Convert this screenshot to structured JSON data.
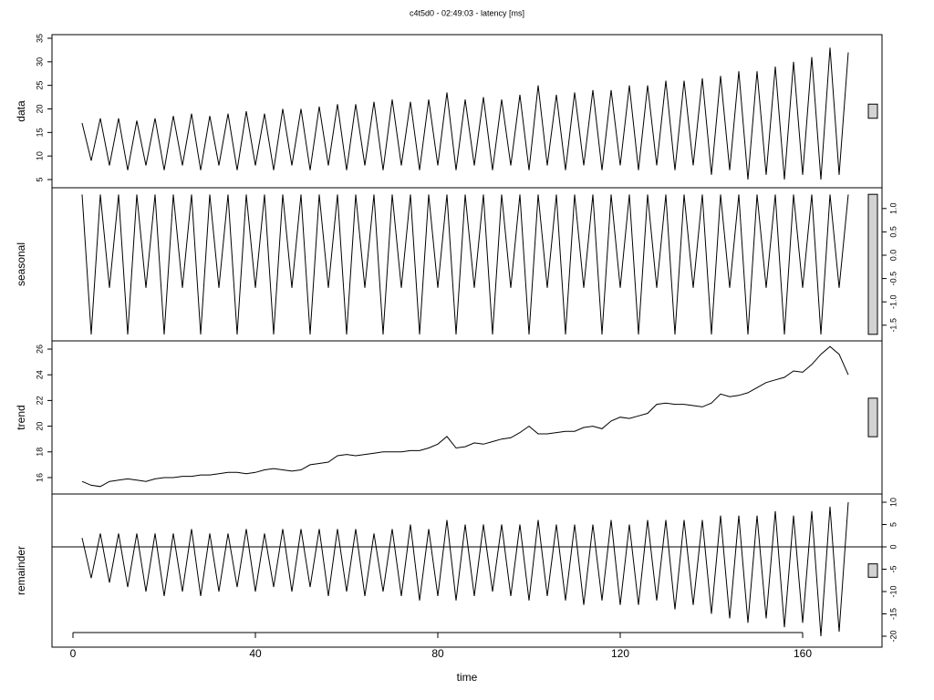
{
  "chart_data": [
    {
      "type": "line",
      "title": "c4t5d0 - 02:49:03 - latency [ms]",
      "ylabel": "data",
      "yaxis_side": "left",
      "color": "#000000",
      "xlim": [
        -4.6,
        177.4
      ],
      "ylim": [
        3.26,
        35.77
      ],
      "yticks": [
        5,
        10,
        15,
        20,
        25,
        30,
        35
      ],
      "scale_bar": 3,
      "x": [
        2,
        4,
        6,
        8,
        10,
        12,
        14,
        16,
        18,
        20,
        22,
        24,
        26,
        28,
        30,
        32,
        34,
        36,
        38,
        40,
        42,
        44,
        46,
        48,
        50,
        52,
        54,
        56,
        58,
        60,
        62,
        64,
        66,
        68,
        70,
        72,
        74,
        76,
        78,
        80,
        82,
        84,
        86,
        88,
        90,
        92,
        94,
        96,
        98,
        100,
        102,
        104,
        106,
        108,
        110,
        112,
        114,
        116,
        118,
        120,
        122,
        124,
        126,
        128,
        130,
        132,
        134,
        136,
        138,
        140,
        142,
        144,
        146,
        148,
        150,
        152,
        154,
        156,
        158,
        160,
        162,
        164,
        166,
        168,
        170
      ],
      "values": [
        17,
        9,
        18,
        8,
        18,
        7,
        17.5,
        8,
        18,
        7,
        18.5,
        8,
        19,
        7,
        18.5,
        8,
        19,
        7,
        19.5,
        8,
        19,
        7,
        20,
        8,
        20,
        7,
        20.5,
        8,
        21,
        7,
        21,
        8,
        21.5,
        7,
        22,
        8,
        21.5,
        7,
        22,
        8,
        23.5,
        7,
        22,
        8,
        22.5,
        7,
        22,
        8,
        23,
        7,
        25,
        8,
        23,
        7,
        23.5,
        8,
        24,
        7,
        24,
        8,
        25,
        7,
        25,
        8,
        26,
        7,
        26,
        8,
        26.5,
        6,
        27,
        7,
        28,
        5,
        28,
        6,
        29,
        5,
        30,
        6,
        31,
        5,
        33,
        6,
        32
      ]
    },
    {
      "type": "line",
      "ylabel": "seasonal",
      "yaxis_side": "right",
      "color": "#000000",
      "xlim": [
        -4.6,
        177.4
      ],
      "ylim": [
        -1.836,
        1.445
      ],
      "scale_bar": 3,
      "yticks": [
        {
          "value": 1,
          "label": "1.0"
        },
        0.5,
        {
          "value": 0,
          "label": "0.0"
        },
        -0.5,
        {
          "value": -1,
          "label": "-1.0"
        },
        -1.5
      ],
      "x": [
        2,
        4,
        6,
        8,
        10,
        12,
        14,
        16,
        18,
        20,
        22,
        24,
        26,
        28,
        30,
        32,
        34,
        36,
        38,
        40,
        42,
        44,
        46,
        48,
        50,
        52,
        54,
        56,
        58,
        60,
        62,
        64,
        66,
        68,
        70,
        72,
        74,
        76,
        78,
        80,
        82,
        84,
        86,
        88,
        90,
        92,
        94,
        96,
        98,
        100,
        102,
        104,
        106,
        108,
        110,
        112,
        114,
        116,
        118,
        120,
        122,
        124,
        126,
        128,
        130,
        132,
        134,
        136,
        138,
        140,
        142,
        144,
        146,
        148,
        150,
        152,
        154,
        156,
        158,
        160,
        162,
        164,
        166,
        168,
        170
      ],
      "values": [
        1.3,
        -1.7,
        1.3,
        -0.7,
        1.3,
        -1.7,
        1.3,
        -0.7,
        1.3,
        -1.7,
        1.3,
        -0.7,
        1.3,
        -1.7,
        1.3,
        -0.7,
        1.3,
        -1.7,
        1.3,
        -0.7,
        1.3,
        -1.7,
        1.3,
        -0.7,
        1.3,
        -1.7,
        1.3,
        -0.7,
        1.3,
        -1.7,
        1.3,
        -0.7,
        1.3,
        -1.7,
        1.3,
        -0.7,
        1.3,
        -1.7,
        1.3,
        -0.7,
        1.3,
        -1.7,
        1.3,
        -0.7,
        1.3,
        -1.7,
        1.3,
        -0.7,
        1.3,
        -1.7,
        1.3,
        -0.7,
        1.3,
        -1.7,
        1.3,
        -0.7,
        1.3,
        -1.7,
        1.3,
        -0.7,
        1.3,
        -1.7,
        1.3,
        -0.7,
        1.3,
        -1.7,
        1.3,
        -0.7,
        1.3,
        -1.7,
        1.3,
        -0.7,
        1.3,
        -1.7,
        1.3,
        -0.7,
        1.3,
        -1.7,
        1.3,
        -0.7,
        1.3,
        -1.7,
        1.3,
        -0.7,
        1.3
      ]
    },
    {
      "type": "line",
      "ylabel": "trend",
      "yaxis_side": "left",
      "color": "#000000",
      "xlim": [
        -4.6,
        177.4
      ],
      "ylim": [
        14.72,
        26.64
      ],
      "yticks": [
        16,
        18,
        20,
        22,
        24,
        26
      ],
      "scale_bar": 3,
      "x": [
        2,
        4,
        6,
        8,
        10,
        12,
        14,
        16,
        18,
        20,
        22,
        24,
        26,
        28,
        30,
        32,
        34,
        36,
        38,
        40,
        42,
        44,
        46,
        48,
        50,
        52,
        54,
        56,
        58,
        60,
        62,
        64,
        66,
        68,
        70,
        72,
        74,
        76,
        78,
        80,
        82,
        84,
        86,
        88,
        90,
        92,
        94,
        96,
        98,
        100,
        102,
        104,
        106,
        108,
        110,
        112,
        114,
        116,
        118,
        120,
        122,
        124,
        126,
        128,
        130,
        132,
        134,
        136,
        138,
        140,
        142,
        144,
        146,
        148,
        150,
        152,
        154,
        156,
        158,
        160,
        162,
        164,
        166,
        168,
        170
      ],
      "values": [
        15.7,
        15.4,
        15.3,
        15.7,
        15.8,
        15.9,
        15.8,
        15.7,
        15.9,
        16.0,
        16.0,
        16.1,
        16.1,
        16.2,
        16.2,
        16.3,
        16.4,
        16.4,
        16.3,
        16.4,
        16.6,
        16.7,
        16.6,
        16.5,
        16.6,
        17.0,
        17.1,
        17.2,
        17.7,
        17.8,
        17.7,
        17.8,
        17.9,
        18.0,
        18.0,
        18.0,
        18.1,
        18.1,
        18.3,
        18.6,
        19.2,
        18.3,
        18.4,
        18.7,
        18.6,
        18.8,
        19.0,
        19.1,
        19.5,
        20.0,
        19.4,
        19.4,
        19.5,
        19.6,
        19.6,
        19.9,
        20.0,
        19.8,
        20.4,
        20.7,
        20.6,
        20.8,
        21.0,
        21.7,
        21.8,
        21.7,
        21.7,
        21.6,
        21.5,
        21.8,
        22.5,
        22.3,
        22.4,
        22.6,
        23.0,
        23.4,
        23.6,
        23.8,
        24.3,
        24.2,
        24.8,
        25.6,
        26.2,
        25.6,
        24.0
      ]
    },
    {
      "type": "line",
      "ylabel": "remainder",
      "yaxis_side": "right",
      "color": "#000000",
      "xlim": [
        -4.6,
        177.4
      ],
      "ylim": [
        -22.45,
        11.84
      ],
      "yticks": [
        10,
        5,
        0,
        -5,
        -10,
        -15,
        -20
      ],
      "scale_bar": 3,
      "hline": 0,
      "xlabel": "time",
      "xticks": [
        0,
        40,
        80,
        120,
        160
      ],
      "x": [
        2,
        4,
        6,
        8,
        10,
        12,
        14,
        16,
        18,
        20,
        22,
        24,
        26,
        28,
        30,
        32,
        34,
        36,
        38,
        40,
        42,
        44,
        46,
        48,
        50,
        52,
        54,
        56,
        58,
        60,
        62,
        64,
        66,
        68,
        70,
        72,
        74,
        76,
        78,
        80,
        82,
        84,
        86,
        88,
        90,
        92,
        94,
        96,
        98,
        100,
        102,
        104,
        106,
        108,
        110,
        112,
        114,
        116,
        118,
        120,
        122,
        124,
        126,
        128,
        130,
        132,
        134,
        136,
        138,
        140,
        142,
        144,
        146,
        148,
        150,
        152,
        154,
        156,
        158,
        160,
        162,
        164,
        166,
        168,
        170
      ],
      "values": [
        2,
        -7,
        3,
        -8,
        3,
        -9,
        3,
        -10,
        3,
        -11,
        3,
        -10,
        4,
        -11,
        3,
        -10,
        3,
        -9,
        4,
        -10,
        3,
        -9,
        4,
        -10,
        4,
        -9,
        4,
        -11,
        4,
        -10,
        4,
        -11,
        3,
        -10,
        4,
        -11,
        5,
        -12,
        4,
        -11,
        6,
        -12,
        5,
        -11,
        5,
        -10,
        5,
        -11,
        5,
        -12,
        6,
        -11,
        5,
        -12,
        5,
        -13,
        5,
        -12,
        6,
        -13,
        5,
        -13,
        6,
        -12,
        6,
        -14,
        6,
        -13,
        6,
        -15,
        7,
        -16,
        7,
        -17,
        7,
        -16,
        8,
        -18,
        7,
        -17,
        8,
        -20,
        9,
        -19,
        10
      ]
    }
  ]
}
